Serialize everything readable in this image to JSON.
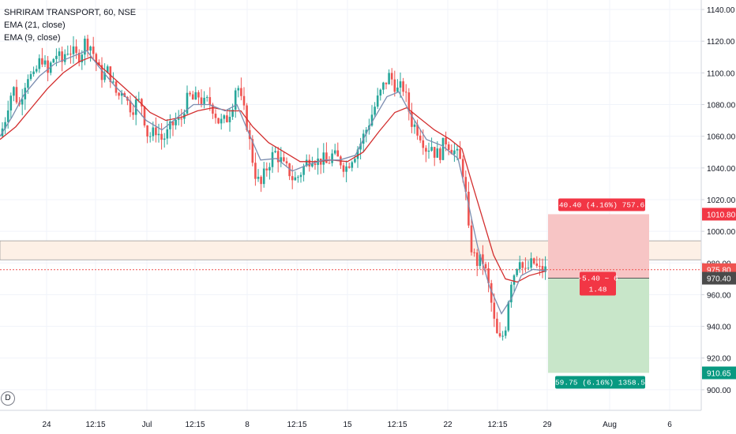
{
  "legend": {
    "symbol": "SHRIRAM TRANSPORT, 60, NSE",
    "ema21": "EMA (21, close)",
    "ema9": "EMA (9, close)"
  },
  "badge": "D",
  "colors": {
    "up": "#26a69a",
    "down": "#ef5350",
    "ema21": "#d32f2f",
    "ema9": "#7b8db0",
    "price_line": "#ef5350",
    "grid": "#f0f3fa",
    "zone_fill": "#fdf0e6",
    "zone_border": "#9e9e9e",
    "stop_fill": "#f7c5c5",
    "target_fill": "#c8e6c9",
    "stop_label": "#f23645",
    "target_label": "#089981",
    "axis_text": "#131722"
  },
  "chart_data": {
    "type": "candlestick",
    "y_axis": {
      "range": [
        887,
        1146
      ],
      "ticks": [
        900,
        920,
        940,
        960,
        980,
        1000,
        1020,
        1040,
        1060,
        1080,
        1100,
        1120,
        1140
      ],
      "labels": [
        "900.00",
        "920.00",
        "940.00",
        "960.00",
        "980.00",
        "1000.00",
        "1020.00",
        "1040.00",
        "1060.00",
        "1080.00",
        "1100.00",
        "1120.00",
        "1140.00"
      ]
    },
    "x_axis": {
      "labels": [
        "24",
        "12:15",
        "Jul",
        "12:15",
        "8",
        "12:15",
        "15",
        "12:15",
        "22",
        "12:15",
        "29",
        "Aug",
        "6"
      ]
    },
    "series_path": [
      [
        0,
        1060
      ],
      [
        6,
        1070
      ],
      [
        12,
        1085
      ],
      [
        18,
        1090
      ],
      [
        24,
        1078
      ],
      [
        30,
        1092
      ],
      [
        36,
        1100
      ],
      [
        42,
        1095
      ],
      [
        48,
        1105
      ],
      [
        54,
        1110
      ],
      [
        60,
        1098
      ],
      [
        66,
        1108
      ],
      [
        72,
        1112
      ],
      [
        78,
        1106
      ],
      [
        84,
        1115
      ],
      [
        90,
        1114
      ],
      [
        96,
        1110
      ],
      [
        102,
        1112
      ],
      [
        108,
        1120
      ],
      [
        114,
        1118
      ],
      [
        120,
        1110
      ],
      [
        126,
        1100
      ],
      [
        132,
        1098
      ],
      [
        138,
        1102
      ],
      [
        144,
        1090
      ],
      [
        150,
        1085
      ],
      [
        156,
        1092
      ],
      [
        162,
        1080
      ],
      [
        168,
        1078
      ],
      [
        174,
        1082
      ],
      [
        180,
        1080
      ],
      [
        186,
        1062
      ],
      [
        192,
        1060
      ],
      [
        198,
        1065
      ],
      [
        204,
        1058
      ],
      [
        210,
        1060
      ],
      [
        216,
        1065
      ],
      [
        222,
        1070
      ],
      [
        228,
        1068
      ],
      [
        234,
        1080
      ],
      [
        240,
        1085
      ],
      [
        246,
        1082
      ],
      [
        252,
        1086
      ],
      [
        258,
        1080
      ],
      [
        264,
        1082
      ],
      [
        270,
        1078
      ],
      [
        276,
        1070
      ],
      [
        282,
        1068
      ],
      [
        288,
        1072
      ],
      [
        294,
        1080
      ],
      [
        300,
        1095
      ],
      [
        306,
        1080
      ],
      [
        312,
        1070
      ],
      [
        318,
        1050
      ],
      [
        324,
        1035
      ],
      [
        330,
        1028
      ],
      [
        336,
        1038
      ],
      [
        342,
        1045
      ],
      [
        348,
        1050
      ],
      [
        354,
        1046
      ],
      [
        360,
        1040
      ],
      [
        366,
        1038
      ],
      [
        372,
        1032
      ],
      [
        378,
        1035
      ],
      [
        384,
        1040
      ],
      [
        390,
        1045
      ],
      [
        396,
        1048
      ],
      [
        402,
        1044
      ],
      [
        408,
        1046
      ],
      [
        414,
        1042
      ],
      [
        420,
        1048
      ],
      [
        426,
        1046
      ],
      [
        432,
        1044
      ],
      [
        438,
        1040
      ],
      [
        444,
        1046
      ],
      [
        450,
        1050
      ],
      [
        456,
        1055
      ],
      [
        462,
        1062
      ],
      [
        468,
        1070
      ],
      [
        474,
        1078
      ],
      [
        480,
        1085
      ],
      [
        486,
        1092
      ],
      [
        492,
        1098
      ],
      [
        498,
        1095
      ],
      [
        504,
        1088
      ],
      [
        510,
        1092
      ],
      [
        516,
        1080
      ],
      [
        522,
        1068
      ],
      [
        528,
        1065
      ],
      [
        534,
        1060
      ],
      [
        540,
        1052
      ],
      [
        546,
        1055
      ],
      [
        552,
        1048
      ],
      [
        558,
        1050
      ],
      [
        564,
        1058
      ],
      [
        570,
        1054
      ],
      [
        576,
        1050
      ],
      [
        582,
        1045
      ],
      [
        588,
        1035
      ],
      [
        593,
        1000
      ],
      [
        599,
        985
      ],
      [
        605,
        980
      ],
      [
        611,
        982
      ],
      [
        617,
        970
      ],
      [
        622,
        955
      ],
      [
        628,
        935
      ],
      [
        634,
        930
      ],
      [
        640,
        940
      ],
      [
        646,
        968
      ],
      [
        652,
        975
      ],
      [
        658,
        985
      ],
      [
        664,
        972
      ],
      [
        670,
        978
      ],
      [
        676,
        980
      ],
      [
        682,
        975
      ],
      [
        688,
        976
      ],
      [
        692,
        975
      ]
    ],
    "ema21_path": [
      [
        0,
        1058
      ],
      [
        20,
        1066
      ],
      [
        40,
        1078
      ],
      [
        60,
        1090
      ],
      [
        80,
        1100
      ],
      [
        100,
        1107
      ],
      [
        115,
        1110
      ],
      [
        130,
        1103
      ],
      [
        150,
        1094
      ],
      [
        170,
        1085
      ],
      [
        190,
        1075
      ],
      [
        210,
        1070
      ],
      [
        230,
        1072
      ],
      [
        250,
        1076
      ],
      [
        270,
        1078
      ],
      [
        290,
        1076
      ],
      [
        305,
        1076
      ],
      [
        320,
        1066
      ],
      [
        340,
        1056
      ],
      [
        360,
        1050
      ],
      [
        380,
        1044
      ],
      [
        400,
        1044
      ],
      [
        420,
        1045
      ],
      [
        440,
        1044
      ],
      [
        460,
        1050
      ],
      [
        480,
        1063
      ],
      [
        500,
        1075
      ],
      [
        515,
        1078
      ],
      [
        530,
        1072
      ],
      [
        550,
        1064
      ],
      [
        570,
        1058
      ],
      [
        585,
        1052
      ],
      [
        595,
        1035
      ],
      [
        610,
        1010
      ],
      [
        625,
        985
      ],
      [
        640,
        970
      ],
      [
        655,
        968
      ],
      [
        670,
        972
      ],
      [
        692,
        975
      ]
    ],
    "ema9_path": [
      [
        0,
        1060
      ],
      [
        15,
        1072
      ],
      [
        30,
        1086
      ],
      [
        50,
        1098
      ],
      [
        70,
        1106
      ],
      [
        90,
        1110
      ],
      [
        110,
        1114
      ],
      [
        125,
        1104
      ],
      [
        145,
        1092
      ],
      [
        165,
        1082
      ],
      [
        185,
        1070
      ],
      [
        205,
        1064
      ],
      [
        225,
        1072
      ],
      [
        245,
        1080
      ],
      [
        265,
        1080
      ],
      [
        285,
        1076
      ],
      [
        300,
        1080
      ],
      [
        315,
        1062
      ],
      [
        330,
        1045
      ],
      [
        350,
        1046
      ],
      [
        370,
        1038
      ],
      [
        390,
        1042
      ],
      [
        410,
        1045
      ],
      [
        430,
        1045
      ],
      [
        450,
        1048
      ],
      [
        470,
        1068
      ],
      [
        490,
        1085
      ],
      [
        505,
        1088
      ],
      [
        520,
        1074
      ],
      [
        540,
        1058
      ],
      [
        560,
        1054
      ],
      [
        580,
        1046
      ],
      [
        592,
        1020
      ],
      [
        605,
        990
      ],
      [
        620,
        965
      ],
      [
        635,
        948
      ],
      [
        648,
        958
      ],
      [
        660,
        972
      ],
      [
        675,
        976
      ],
      [
        692,
        975
      ]
    ],
    "zones": {
      "resistance_top": 994,
      "resistance_bottom": 982,
      "current_price": 975.8,
      "entry": 970.4,
      "stop": 1010.8,
      "target": 910.65
    },
    "price_labels": {
      "stop": "1010.80",
      "current": "975.80",
      "entry": "970.40",
      "target": "910.65"
    },
    "position_labels": {
      "stop": "40.40 (4.16%) 757.6",
      "center_line1": "-5.40 ~ 6",
      "center_line2": "1.48",
      "target": "59.75 (6.16%) 1358.5"
    }
  }
}
